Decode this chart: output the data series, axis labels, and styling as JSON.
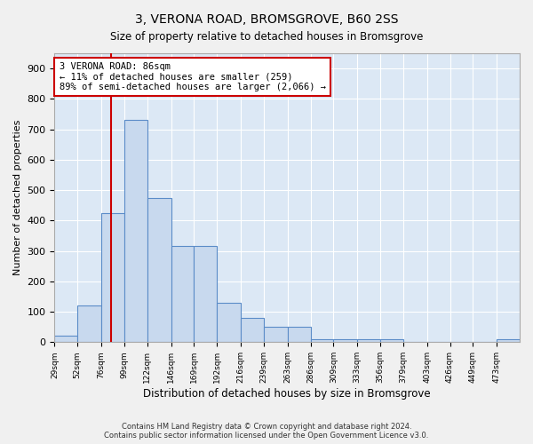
{
  "title": "3, VERONA ROAD, BROMSGROVE, B60 2SS",
  "subtitle": "Size of property relative to detached houses in Bromsgrove",
  "xlabel": "Distribution of detached houses by size in Bromsgrove",
  "ylabel": "Number of detached properties",
  "footer_line1": "Contains HM Land Registry data © Crown copyright and database right 2024.",
  "footer_line2": "Contains public sector information licensed under the Open Government Licence v3.0.",
  "annotation_text": "3 VERONA ROAD: 86sqm\n← 11% of detached houses are smaller (259)\n89% of semi-detached houses are larger (2,066) →",
  "property_size": 86,
  "bar_color": "#c8d9ee",
  "bar_edge_color": "#5b8cc8",
  "vline_color": "#cc0000",
  "annotation_box_color": "#cc0000",
  "bin_edges": [
    29,
    52,
    76,
    99,
    122,
    146,
    169,
    192,
    216,
    239,
    263,
    286,
    309,
    333,
    356,
    379,
    403,
    426,
    449,
    473,
    496
  ],
  "bar_heights": [
    20,
    120,
    425,
    730,
    475,
    315,
    315,
    130,
    80,
    50,
    50,
    10,
    10,
    10,
    10,
    0,
    0,
    0,
    0,
    10
  ],
  "ylim": [
    0,
    950
  ],
  "yticks": [
    0,
    100,
    200,
    300,
    400,
    500,
    600,
    700,
    800,
    900
  ],
  "fig_bg": "#f0f0f0",
  "plot_bg": "#dce8f5"
}
